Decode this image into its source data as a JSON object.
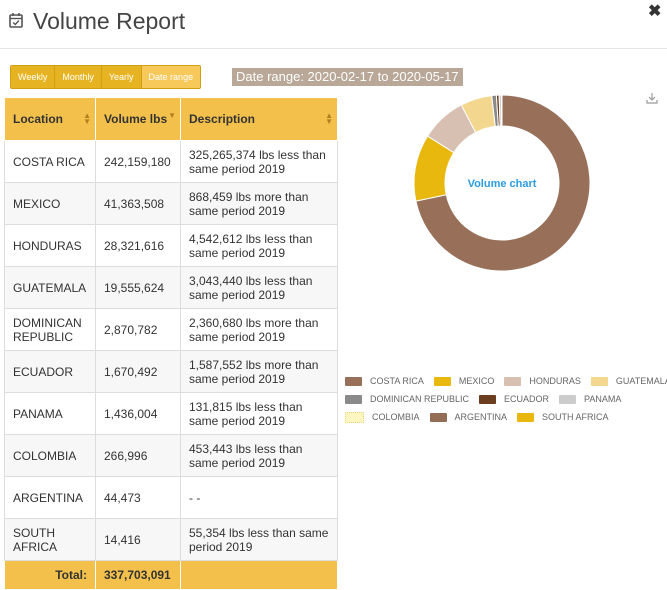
{
  "title": "Volume Report",
  "tabs": [
    "Weekly",
    "Monthly",
    "Yearly",
    "Date range"
  ],
  "active_tab": "Date range",
  "date_range": "Date range: 2020-02-17 to 2020-05-17",
  "table": {
    "headers": [
      "Location",
      "Volume lbs",
      "Description"
    ],
    "rows": [
      {
        "location": "COSTA RICA",
        "volume": "242,159,180",
        "description": "325,265,374 lbs less than same period 2019"
      },
      {
        "location": "MEXICO",
        "volume": "41,363,508",
        "description": "868,459 lbs more than same period 2019"
      },
      {
        "location": "HONDURAS",
        "volume": "28,321,616",
        "description": "4,542,612 lbs less than same period 2019"
      },
      {
        "location": "GUATEMALA",
        "volume": "19,555,624",
        "description": "3,043,440 lbs less than same period 2019"
      },
      {
        "location": "DOMINICAN REPUBLIC",
        "volume": "2,870,782",
        "description": "2,360,680 lbs more than same period 2019"
      },
      {
        "location": "ECUADOR",
        "volume": "1,670,492",
        "description": "1,587,552 lbs more than same period 2019"
      },
      {
        "location": "PANAMA",
        "volume": "1,436,004",
        "description": "131,815 lbs less than same period 2019"
      },
      {
        "location": "COLOMBIA",
        "volume": "266,996",
        "description": "453,443 lbs less than same period 2019"
      },
      {
        "location": "ARGENTINA",
        "volume": "44,473",
        "description": "- -"
      },
      {
        "location": "SOUTH AFRICA",
        "volume": "14,416",
        "description": "55,354 lbs less than same period 2019"
      }
    ],
    "total_label": "Total:",
    "total_value": "337,703,091"
  },
  "chart_data": {
    "type": "pie",
    "donut": true,
    "center_label": "Volume chart",
    "categories": [
      "COSTA RICA",
      "MEXICO",
      "HONDURAS",
      "GUATEMALA",
      "DOMINICAN REPUBLIC",
      "ECUADOR",
      "PANAMA",
      "COLOMBIA",
      "ARGENTINA",
      "SOUTH AFRICA"
    ],
    "values": [
      242159180,
      41363508,
      28321616,
      19555624,
      2870782,
      1670492,
      1436004,
      266996,
      44473,
      14416
    ],
    "colors": [
      "#98705a",
      "#e8b80e",
      "#d7bfb1",
      "#f4d78e",
      "#8a8a8a",
      "#6b3e20",
      "#cccccc",
      "#fff6c2",
      "#936d55",
      "#e8b80e"
    ],
    "legend_position": "bottom"
  },
  "icons": {
    "title": "calendar-check-icon",
    "close": "close-icon",
    "download": "download-icon"
  }
}
